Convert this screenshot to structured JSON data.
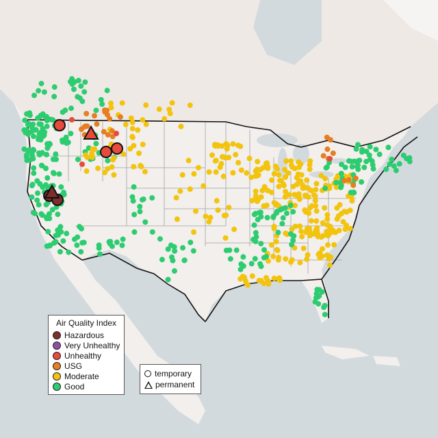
{
  "legend": {
    "title": "Air Quality Index",
    "categories": [
      {
        "label": "Hazardous",
        "color": "#7e2f2b"
      },
      {
        "label": "Very Unhealthy",
        "color": "#8f4fa6"
      },
      {
        "label": "Unhealthy",
        "color": "#e84a3c"
      },
      {
        "label": "USG",
        "color": "#e67e22"
      },
      {
        "label": "Moderate",
        "color": "#f2c40f"
      },
      {
        "label": "Good",
        "color": "#2ecc71"
      }
    ]
  },
  "shape_legend": {
    "temporary": "temporary",
    "permanent": "permanent"
  },
  "colors": {
    "land": "#f4f1ee",
    "water": "#d3dade",
    "border": "#111111",
    "state_lines": "#9a9a9a",
    "no_data": "#b8b8b8"
  }
}
